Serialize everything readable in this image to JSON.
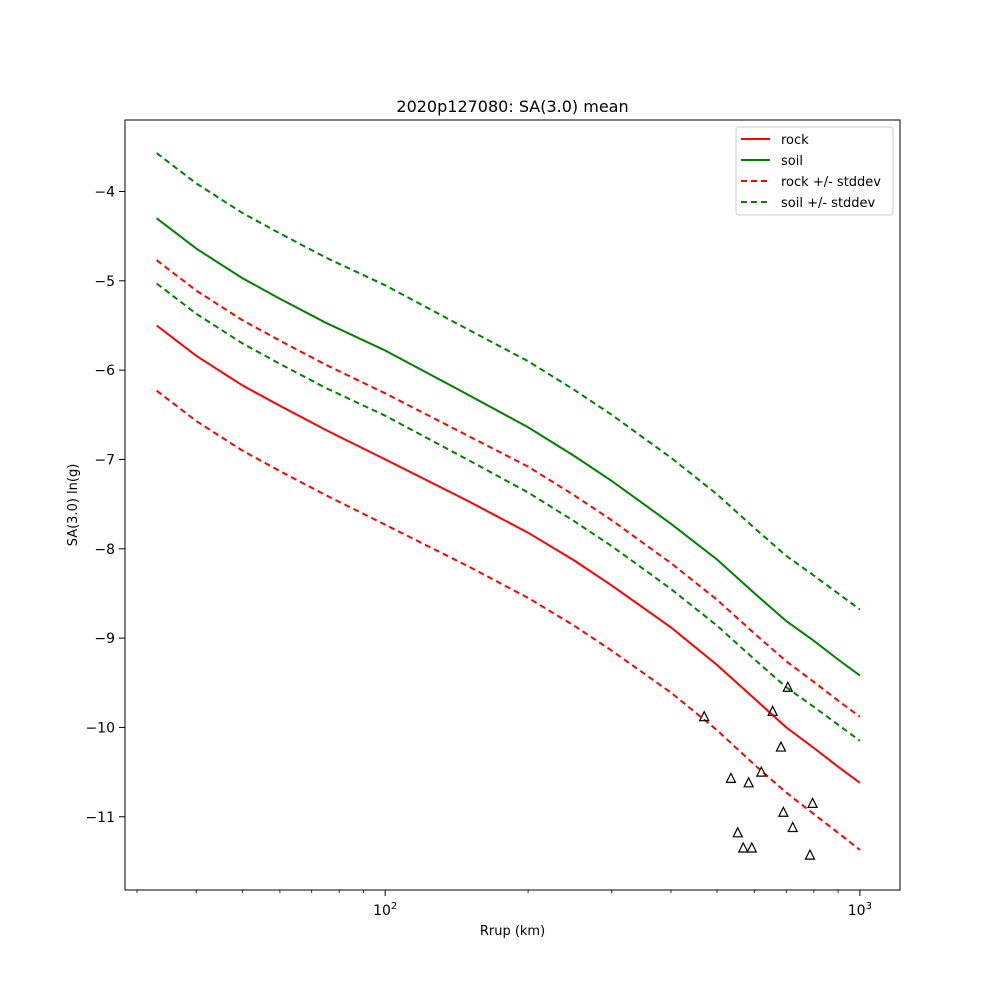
{
  "chart_data": {
    "type": "line",
    "title": "2020p127080: SA(3.0) mean",
    "xlabel": "Rrup (km)",
    "ylabel": "SA(3.0) ln(g)",
    "xscale": "log",
    "xlim": [
      28.3,
      1215
    ],
    "ylim": [
      -11.82,
      -3.2
    ],
    "xticks": [
      {
        "value": 100,
        "label": "10",
        "sup": "2"
      },
      {
        "value": 1000,
        "label": "10",
        "sup": "3"
      }
    ],
    "yticks": [
      {
        "value": -4,
        "label": "−4"
      },
      {
        "value": -5,
        "label": "−5"
      },
      {
        "value": -6,
        "label": "−6"
      },
      {
        "value": -7,
        "label": "−7"
      },
      {
        "value": -8,
        "label": "−8"
      },
      {
        "value": -9,
        "label": "−9"
      },
      {
        "value": -10,
        "label": "−10"
      },
      {
        "value": -11,
        "label": "−11"
      }
    ],
    "grid": false,
    "legend_position": "top-right",
    "x": [
      33,
      40,
      50,
      60,
      75,
      100,
      150,
      200,
      250,
      300,
      400,
      500,
      600,
      700,
      800,
      900,
      1000
    ],
    "series": [
      {
        "name": "rock",
        "color": "#ff0000",
        "style": "solid",
        "values": [
          -5.5,
          -5.84,
          -6.17,
          -6.4,
          -6.67,
          -7.0,
          -7.47,
          -7.82,
          -8.13,
          -8.41,
          -8.88,
          -9.3,
          -9.68,
          -10.0,
          -10.23,
          -10.44,
          -10.62
        ]
      },
      {
        "name": "soil",
        "color": "#008000",
        "style": "solid",
        "values": [
          -4.3,
          -4.64,
          -4.97,
          -5.2,
          -5.47,
          -5.78,
          -6.28,
          -6.64,
          -6.96,
          -7.24,
          -7.72,
          -8.12,
          -8.5,
          -8.81,
          -9.03,
          -9.24,
          -9.42
        ]
      },
      {
        "name": "rock +/- stddev",
        "color": "#ff0000",
        "style": "dashed",
        "values": [
          -4.77,
          -5.11,
          -5.44,
          -5.67,
          -5.94,
          -6.26,
          -6.74,
          -7.08,
          -7.4,
          -7.68,
          -8.16,
          -8.57,
          -8.95,
          -9.26,
          -9.49,
          -9.7,
          -9.88
        ]
      },
      {
        "name": "",
        "color": "#ff0000",
        "style": "dashed",
        "values": [
          -6.23,
          -6.57,
          -6.9,
          -7.13,
          -7.4,
          -7.73,
          -8.2,
          -8.55,
          -8.86,
          -9.14,
          -9.61,
          -10.03,
          -10.42,
          -10.73,
          -10.97,
          -11.18,
          -11.37
        ]
      },
      {
        "name": "soil +/- stddev",
        "color": "#008000",
        "style": "dashed",
        "values": [
          -3.57,
          -3.91,
          -4.24,
          -4.47,
          -4.74,
          -5.05,
          -5.55,
          -5.9,
          -6.22,
          -6.5,
          -6.98,
          -7.39,
          -7.77,
          -8.08,
          -8.3,
          -8.5,
          -8.68
        ]
      },
      {
        "name": "",
        "color": "#008000",
        "style": "dashed",
        "values": [
          -5.03,
          -5.37,
          -5.7,
          -5.93,
          -6.2,
          -6.51,
          -7.01,
          -7.37,
          -7.69,
          -7.97,
          -8.45,
          -8.86,
          -9.24,
          -9.55,
          -9.77,
          -9.97,
          -10.15
        ]
      }
    ],
    "observations": [
      {
        "x": 470,
        "y": -9.88
      },
      {
        "x": 535,
        "y": -10.57
      },
      {
        "x": 553,
        "y": -11.18
      },
      {
        "x": 568,
        "y": -11.35
      },
      {
        "x": 583,
        "y": -10.62
      },
      {
        "x": 592,
        "y": -11.35
      },
      {
        "x": 620,
        "y": -10.5
      },
      {
        "x": 655,
        "y": -9.82
      },
      {
        "x": 682,
        "y": -10.22
      },
      {
        "x": 690,
        "y": -10.95
      },
      {
        "x": 705,
        "y": -9.55
      },
      {
        "x": 722,
        "y": -11.12
      },
      {
        "x": 785,
        "y": -11.43
      },
      {
        "x": 795,
        "y": -10.85
      }
    ]
  }
}
